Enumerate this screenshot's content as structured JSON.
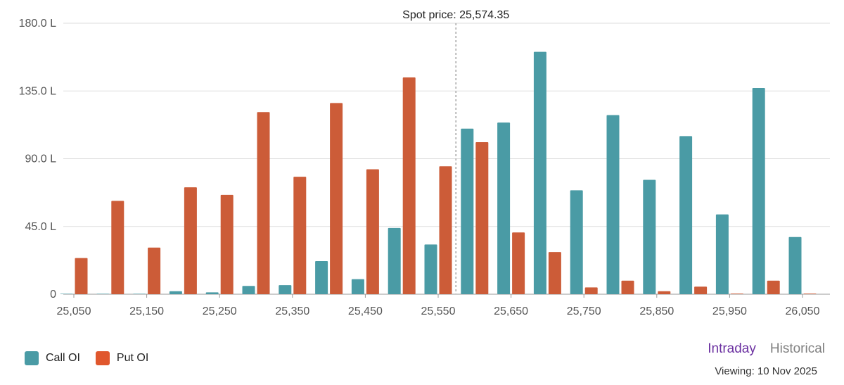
{
  "chart_data": {
    "type": "bar",
    "categories": [
      "25,050",
      "25,100",
      "25,150",
      "25,200",
      "25,250",
      "25,300",
      "25,350",
      "25,400",
      "25,450",
      "25,500",
      "25,550",
      "25,600",
      "25,650",
      "25,700",
      "25,750",
      "25,800",
      "25,850",
      "25,900",
      "25,950",
      "26,000",
      "26,050"
    ],
    "x_tick_labels": [
      "25,050",
      "25,150",
      "25,250",
      "25,350",
      "25,450",
      "25,550",
      "25,650",
      "25,750",
      "25,850",
      "25,950",
      "26,050"
    ],
    "y_tick_labels": [
      "0",
      "45.0 L",
      "90.0 L",
      "135.0 L",
      "180.0 L"
    ],
    "ylim": [
      0,
      180
    ],
    "grid": true,
    "series": [
      {
        "name": "Call OI",
        "color": "#4a9ba5",
        "values": [
          0.3,
          0.3,
          0.3,
          2,
          1.2,
          5.5,
          6,
          22,
          10,
          44,
          33,
          110,
          114,
          161,
          69,
          119,
          76,
          105,
          53,
          137,
          38
        ]
      },
      {
        "name": "Put OI",
        "color": "#cc5c38",
        "values": [
          24,
          62,
          31,
          71,
          66,
          121,
          78,
          127,
          83,
          144,
          85,
          101,
          41,
          28,
          4.5,
          9,
          2,
          5,
          0.4,
          9,
          0.4
        ]
      }
    ],
    "annotation": {
      "label": "Spot price: 25,574.35",
      "x": 25574.35
    }
  },
  "legend": [
    {
      "label": "Call OI",
      "color": "#4a9ba5"
    },
    {
      "label": "Put OI",
      "color": "#e0572d"
    }
  ],
  "tabs": [
    {
      "label": "Intraday",
      "active": true,
      "color": "#6a2fa0"
    },
    {
      "label": "Historical",
      "active": false,
      "color": "#808080"
    }
  ],
  "viewing": "Viewing: 10 Nov 2025"
}
